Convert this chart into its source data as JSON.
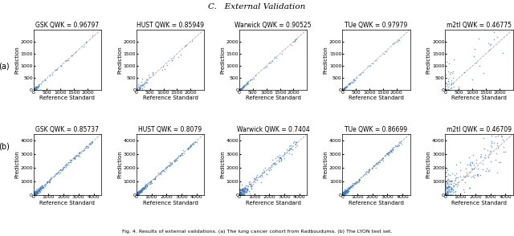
{
  "title": "C.   External Validation",
  "caption": "Fig. 4. Results of external validations. (a) The lung cancer cohort from Radbouduma. (b) The LYON test set.",
  "row_labels": [
    "(a)",
    "(b)"
  ],
  "col_titles_a": [
    "GSK QWK = 0.96797",
    "HUST QWK = 0.85949",
    "Warwick QWK = 0.90525",
    "TUe QWK = 0.97979",
    "m2tl QWK = 0.46775"
  ],
  "col_titles_b": [
    "GSK QWK = 0.85737",
    "HUST QWK = 0.8079",
    "Warwick QWK = 0.7404",
    "TUe QWK = 0.86699",
    "m2tl QWK = 0.46709"
  ],
  "xlim_a": [
    0,
    2500
  ],
  "ylim_a": [
    0,
    2500
  ],
  "xticks_a": [
    0,
    500,
    1000,
    1500,
    2000
  ],
  "yticks_a": [
    0,
    500,
    1000,
    1500,
    2000
  ],
  "xlim_b": [
    0,
    4500
  ],
  "ylim_b": [
    0,
    4500
  ],
  "xticks_b": [
    0,
    1000,
    2000,
    3000,
    4000
  ],
  "yticks_b": [
    0,
    1000,
    2000,
    3000,
    4000
  ],
  "dot_color": "#3a7abf",
  "dot_size": 1.2,
  "dot_alpha": 0.7,
  "line_color": "#aaaaaa",
  "line_style": "--",
  "xlabel": "Reference Standard",
  "ylabel": "Prediction",
  "background_color": "#ffffff",
  "title_fontsize": 7.5,
  "subtitle_fontsize": 5.5,
  "axis_label_fontsize": 5,
  "tick_fontsize": 4.5,
  "caption_fontsize": 4.5,
  "row_label_fontsize": 7
}
